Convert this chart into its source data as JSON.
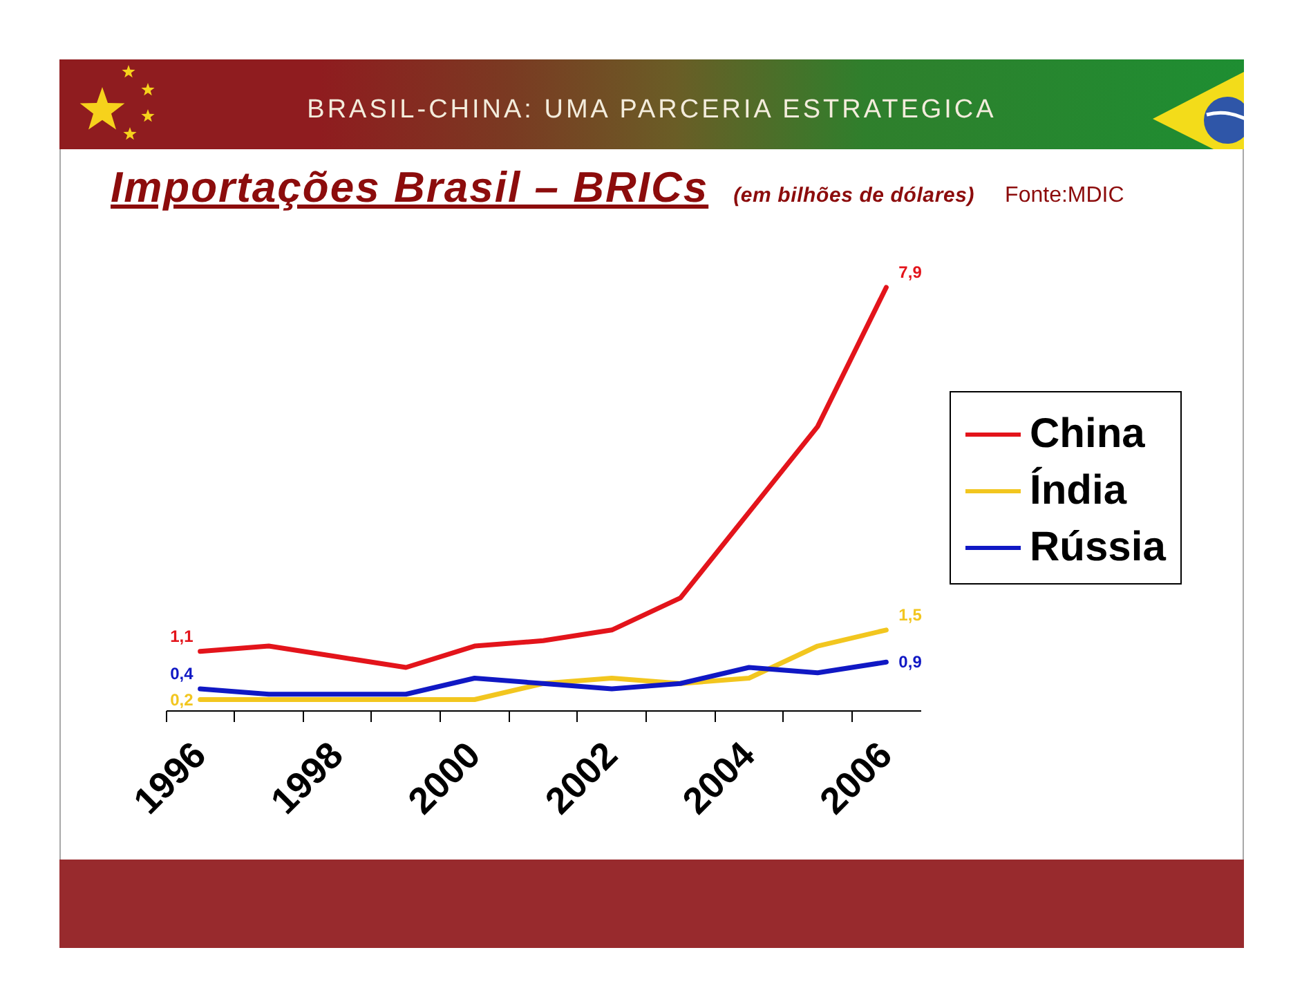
{
  "chart_data": {
    "type": "line",
    "title": "Importações Brasil – BRICs",
    "subtitle": "(em bilhões de dólares)",
    "annotations": [
      "BRASIL-CHINA: UMA PARCERIA ESTRATEGICA",
      "Fonte:MDIC"
    ],
    "categories": [
      "1996",
      null,
      "1998",
      null,
      "2000",
      null,
      "2002",
      null,
      "2004",
      null,
      "2006"
    ],
    "series": [
      {
        "name": "China",
        "color": "#e3141b",
        "values": [
          1.1,
          1.2,
          1.0,
          0.8,
          1.2,
          1.3,
          1.5,
          2.1,
          3.7,
          5.3,
          7.9
        ],
        "value_labels": [
          "1,1",
          null,
          null,
          null,
          null,
          null,
          null,
          null,
          null,
          null,
          "7,9"
        ]
      },
      {
        "name": "Índia",
        "color": "#f2c61f",
        "values": [
          0.2,
          0.2,
          0.2,
          0.2,
          0.2,
          0.5,
          0.6,
          0.5,
          0.6,
          1.2,
          1.5
        ],
        "value_labels": [
          "0,2",
          null,
          null,
          null,
          null,
          null,
          null,
          null,
          null,
          null,
          "1,5"
        ]
      },
      {
        "name": "Rússia",
        "color": "#1018c4",
        "values": [
          0.4,
          0.3,
          0.3,
          0.3,
          0.6,
          0.5,
          0.4,
          0.5,
          0.8,
          0.7,
          0.9
        ],
        "value_labels": [
          "0,4",
          null,
          null,
          null,
          null,
          null,
          null,
          null,
          null,
          null,
          "0,9"
        ]
      }
    ],
    "legend": "right",
    "tick_labels": "x",
    "line_style": "solid"
  }
}
